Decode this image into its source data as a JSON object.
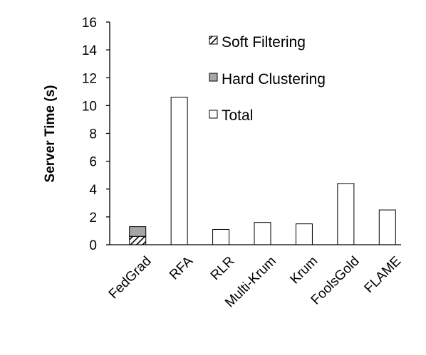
{
  "chart_data": {
    "type": "bar",
    "ylabel": "Server Time (s)",
    "xlabel": "",
    "ylim": [
      0,
      16
    ],
    "yticks": [
      0,
      2,
      4,
      6,
      8,
      10,
      12,
      14,
      16
    ],
    "grid": false,
    "legend_position": "top-right inside",
    "categories": [
      "FedGrad",
      "RFA",
      "RLR",
      "Multi-Krum",
      "Krum",
      "FoolsGold",
      "FLAME"
    ],
    "stacked_series": [
      {
        "name": "Soft Filtering",
        "fill": "hatched",
        "values": [
          0.6,
          null,
          null,
          null,
          null,
          null,
          null
        ]
      },
      {
        "name": "Hard Clustering",
        "fill": "#a6a6a6",
        "values": [
          0.7,
          null,
          null,
          null,
          null,
          null,
          null
        ]
      }
    ],
    "total_series": {
      "name": "Total",
      "fill": "#ffffff",
      "values": [
        null,
        10.6,
        1.1,
        1.6,
        1.5,
        4.4,
        2.5
      ]
    },
    "legend": [
      "Soft Filtering",
      "Hard Clustering",
      "Total"
    ],
    "colors": {
      "hard_clustering": "#a6a6a6",
      "outline": "#000000",
      "total": "#ffffff"
    }
  }
}
